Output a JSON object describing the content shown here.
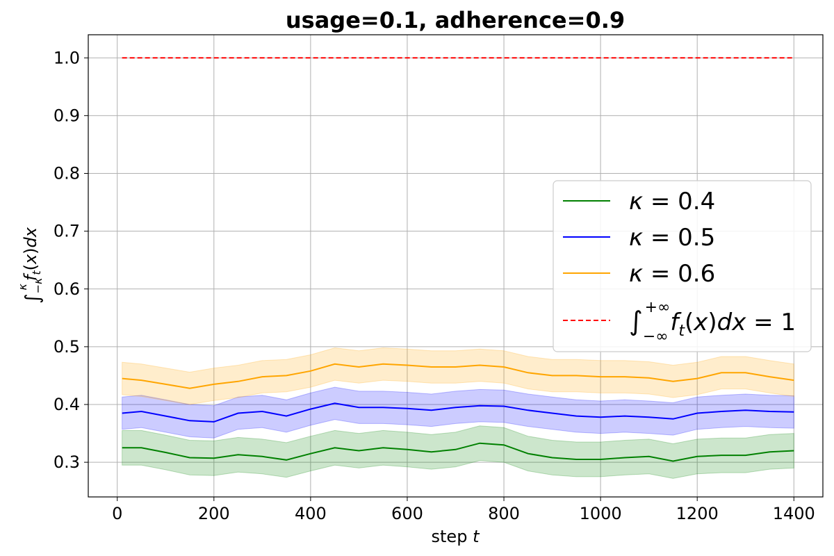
{
  "chart_data": {
    "type": "line",
    "title": "usage=0.1, adherence=0.9",
    "xlabel_prefix": "step ",
    "xlabel_var": "t",
    "ylabel": "∫_{−κ}^{κ} f_t(x)dx",
    "xlim": [
      -60,
      1460
    ],
    "ylim": [
      0.24,
      1.04
    ],
    "xticks": [
      0,
      200,
      400,
      600,
      800,
      1000,
      1200,
      1400
    ],
    "yticks": [
      0.3,
      0.4,
      0.5,
      0.6,
      0.7,
      0.8,
      0.9,
      1.0
    ],
    "grid": true,
    "legend_position": "center-right",
    "x": [
      10,
      50,
      100,
      150,
      200,
      250,
      300,
      350,
      400,
      450,
      500,
      550,
      600,
      650,
      700,
      750,
      800,
      850,
      900,
      950,
      1000,
      1050,
      1100,
      1150,
      1200,
      1250,
      1300,
      1350,
      1400
    ],
    "series": [
      {
        "name": "κ = 0.4",
        "color": "#008000",
        "values": [
          0.325,
          0.325,
          0.317,
          0.308,
          0.307,
          0.313,
          0.31,
          0.304,
          0.315,
          0.325,
          0.32,
          0.325,
          0.322,
          0.318,
          0.322,
          0.333,
          0.33,
          0.315,
          0.308,
          0.305,
          0.305,
          0.308,
          0.31,
          0.302,
          0.31,
          0.312,
          0.312,
          0.318,
          0.32
        ],
        "band_half_width": 0.03
      },
      {
        "name": "κ = 0.5",
        "color": "#0000ff",
        "values": [
          0.385,
          0.388,
          0.38,
          0.372,
          0.37,
          0.385,
          0.388,
          0.38,
          0.392,
          0.402,
          0.395,
          0.395,
          0.393,
          0.39,
          0.395,
          0.398,
          0.397,
          0.39,
          0.385,
          0.38,
          0.378,
          0.38,
          0.378,
          0.375,
          0.385,
          0.388,
          0.39,
          0.388,
          0.387
        ],
        "band_half_width": 0.028
      },
      {
        "name": "κ = 0.6",
        "color": "#ffa500",
        "values": [
          0.445,
          0.442,
          0.435,
          0.428,
          0.435,
          0.44,
          0.448,
          0.45,
          0.458,
          0.47,
          0.465,
          0.47,
          0.468,
          0.465,
          0.465,
          0.468,
          0.465,
          0.455,
          0.45,
          0.45,
          0.448,
          0.448,
          0.446,
          0.44,
          0.445,
          0.455,
          0.455,
          0.448,
          0.442
        ],
        "band_half_width": 0.028
      }
    ],
    "reference_line": {
      "label": "∫_{−∞}^{+∞} f_t(x)dx = 1",
      "color": "#ff0000",
      "y": 1.0,
      "x_start": 10,
      "x_end": 1400
    }
  }
}
